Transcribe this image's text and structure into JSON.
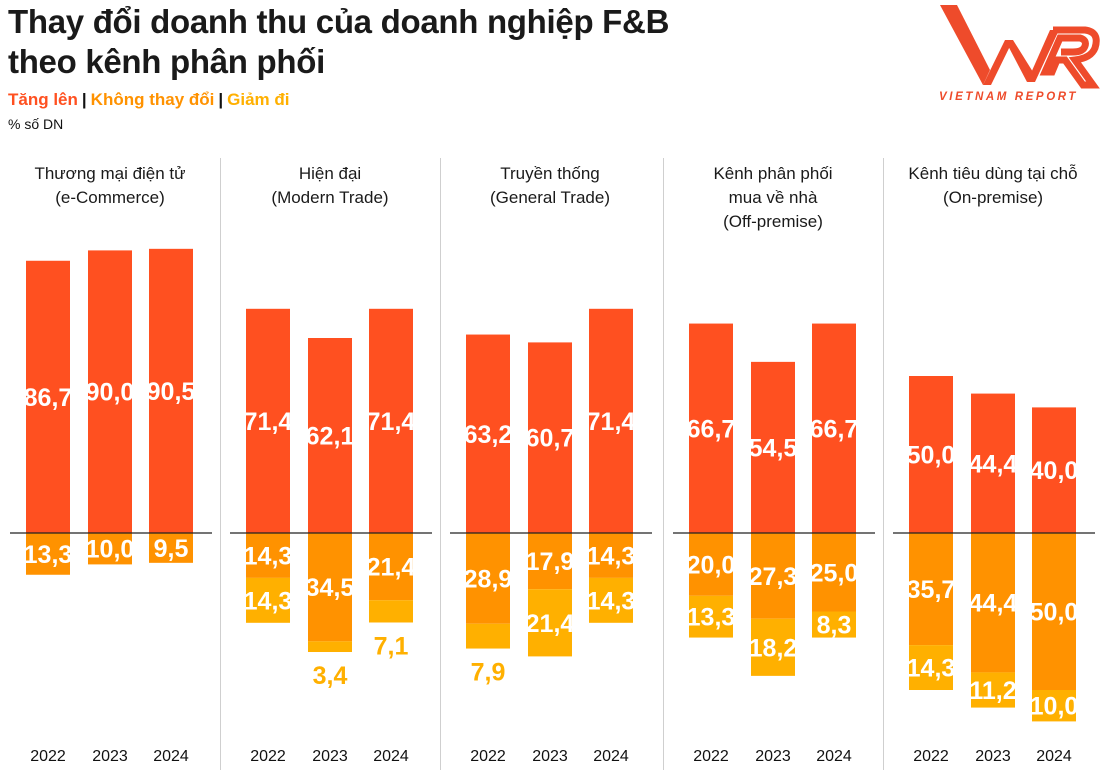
{
  "title_line1": "Thay đổi doanh thu của doanh nghiệp F&B",
  "title_line2": "theo kênh phân phối",
  "legend": {
    "increase": "Tăng lên",
    "no_change": "Không thay đổi",
    "decrease": "Giảm đi",
    "separator": "|"
  },
  "unit": "% số DN",
  "logo": {
    "text": "VNR",
    "subtext": "VIETNAM REPORT"
  },
  "colors": {
    "increase": "#FF5020",
    "no_change": "#FF9200",
    "decrease": "#FFB000",
    "logo": "#EE4B2B"
  },
  "chart_data": {
    "type": "bar",
    "stacked": "diverging",
    "categories": [
      "2022",
      "2023",
      "2024"
    ],
    "panels": [
      {
        "title": [
          "Thương mại điện tử",
          "(e-Commerce)"
        ],
        "increase": [
          86.7,
          90.0,
          90.5
        ],
        "no_change": [
          13.3,
          10.0,
          9.5
        ],
        "decrease": [
          null,
          null,
          null
        ]
      },
      {
        "title": [
          "Hiện đại",
          "(Modern Trade)"
        ],
        "increase": [
          71.4,
          62.1,
          71.4
        ],
        "no_change": [
          14.3,
          34.5,
          21.4
        ],
        "decrease": [
          14.3,
          3.4,
          7.1
        ]
      },
      {
        "title": [
          "Truyền thống",
          "(General Trade)"
        ],
        "increase": [
          63.2,
          60.7,
          71.4
        ],
        "no_change": [
          28.9,
          17.9,
          14.3
        ],
        "decrease": [
          7.9,
          21.4,
          14.3
        ]
      },
      {
        "title": [
          "Kênh phân phối",
          "mua về nhà",
          "(Off-premise)"
        ],
        "increase": [
          66.7,
          54.5,
          66.7
        ],
        "no_change": [
          20.0,
          27.3,
          25.0
        ],
        "decrease": [
          13.3,
          18.2,
          8.3
        ]
      },
      {
        "title": [
          "Kênh tiêu dùng tại chỗ",
          "(On-premise)"
        ],
        "increase": [
          50.0,
          44.4,
          40.0
        ],
        "no_change": [
          35.7,
          44.4,
          50.0
        ],
        "decrease": [
          14.3,
          11.2,
          10.0
        ]
      }
    ],
    "legend_placement": "top-left",
    "grid": false
  }
}
